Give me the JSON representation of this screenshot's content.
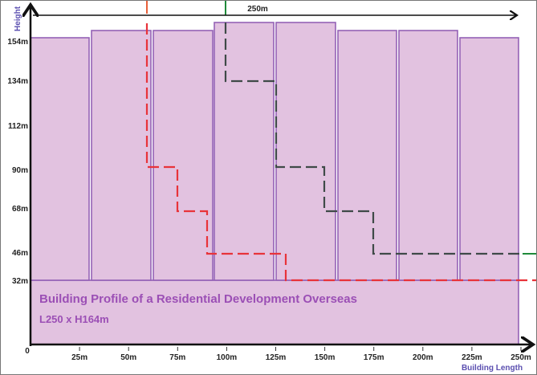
{
  "title": "Building Profile of a Residential Development Overseas",
  "subtitle": "L250 x H164m",
  "y_axis_label": "Height",
  "x_axis_label": "Building Length",
  "origin_label": "0",
  "dimension_label": "250m",
  "y_ticks": [
    "154m",
    "134m",
    "112m",
    "90m",
    "68m",
    "46m",
    "32m"
  ],
  "x_ticks": [
    "25m",
    "50m",
    "75m",
    "100m",
    "125m",
    "150m",
    "175m",
    "200m",
    "225m",
    "250m"
  ],
  "colors": {
    "building_fill": "#e2c2e0",
    "building_stroke": "#9462b6",
    "red_setback_line": "#e8333a",
    "grey_setback_line": "#3f4a48",
    "green_marker": "#1f8a3a"
  }
}
